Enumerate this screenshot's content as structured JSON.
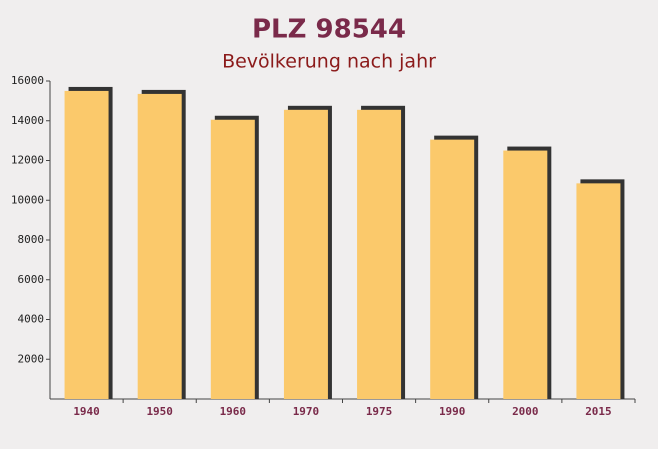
{
  "chart_data": {
    "type": "bar",
    "title": "PLZ 98544",
    "subtitle": "Bevölkerung nach jahr",
    "categories": [
      "1940",
      "1950",
      "1960",
      "1970",
      "1975",
      "1990",
      "2000",
      "2015"
    ],
    "values": [
      15500,
      15350,
      14050,
      14550,
      14550,
      13050,
      12500,
      10850
    ],
    "color": "#fbc96b",
    "ylim": [
      0,
      16000
    ],
    "yticks": [
      2000,
      4000,
      6000,
      8000,
      10000,
      12000,
      14000,
      16000
    ]
  }
}
